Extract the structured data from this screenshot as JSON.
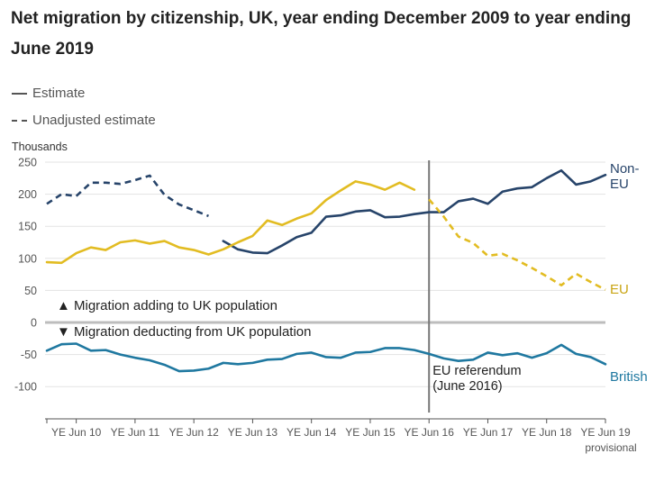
{
  "chart_data": {
    "type": "line",
    "title": "Net migration by citizenship, UK, year ending December 2009 to year ending June 2019",
    "ylabel": "Thousands",
    "ylim": [
      -140,
      250
    ],
    "yticks": [
      250,
      200,
      150,
      100,
      50,
      0,
      -50,
      -100
    ],
    "xtick_labels": [
      "YE Jun 10",
      "YE Jun 11",
      "YE Jun 12",
      "YE Jun 13",
      "YE Jun 14",
      "YE Jun 15",
      "YE Jun 16",
      "YE Jun 17",
      "YE Jun 18",
      "YE Jun 19"
    ],
    "xtick_note": "provisional",
    "x_start": "YE Dec 09",
    "x_step": "quarter",
    "grid": true,
    "legend": {
      "position": "top-left",
      "items": [
        {
          "label": "Estimate",
          "style": "solid"
        },
        {
          "label": "Unadjusted estimate",
          "style": "dashed"
        }
      ]
    },
    "series": [
      {
        "name": "Non-EU",
        "color": "#206095",
        "style_colour": "#27446a",
        "unadjusted": [
          [
            0,
            185
          ],
          [
            1,
            200
          ],
          [
            2,
            197
          ],
          [
            3,
            218
          ],
          [
            4,
            218
          ],
          [
            5,
            216
          ],
          [
            6,
            222
          ],
          [
            7,
            229
          ],
          [
            8,
            199
          ],
          [
            9,
            184
          ],
          [
            10,
            175
          ],
          [
            11,
            166
          ]
        ],
        "estimate": [
          [
            12,
            127
          ],
          [
            13,
            114
          ],
          [
            14,
            109
          ],
          [
            15,
            108
          ],
          [
            16,
            120
          ],
          [
            17,
            133
          ],
          [
            18,
            140
          ],
          [
            19,
            165
          ],
          [
            20,
            167
          ],
          [
            21,
            173
          ],
          [
            22,
            175
          ],
          [
            23,
            164
          ],
          [
            24,
            165
          ],
          [
            25,
            169
          ],
          [
            26,
            172
          ],
          [
            27,
            172
          ],
          [
            28,
            189
          ],
          [
            29,
            193
          ],
          [
            30,
            185
          ],
          [
            31,
            204
          ],
          [
            32,
            209
          ],
          [
            33,
            211
          ],
          [
            34,
            225
          ],
          [
            35,
            237
          ],
          [
            36,
            215
          ],
          [
            37,
            220
          ],
          [
            38,
            230
          ]
        ]
      },
      {
        "name": "EU",
        "color": "#e2bc22",
        "estimate": [
          [
            0,
            94
          ],
          [
            1,
            93
          ],
          [
            2,
            108
          ],
          [
            3,
            117
          ],
          [
            4,
            113
          ],
          [
            5,
            125
          ],
          [
            6,
            128
          ],
          [
            7,
            123
          ],
          [
            8,
            127
          ],
          [
            9,
            117
          ],
          [
            10,
            113
          ],
          [
            11,
            106
          ],
          [
            12,
            114
          ],
          [
            13,
            125
          ],
          [
            14,
            135
          ],
          [
            15,
            159
          ],
          [
            16,
            152
          ],
          [
            17,
            162
          ],
          [
            18,
            170
          ],
          [
            19,
            191
          ],
          [
            20,
            206
          ],
          [
            21,
            220
          ],
          [
            22,
            215
          ],
          [
            23,
            207
          ],
          [
            24,
            218
          ],
          [
            25,
            207
          ]
        ],
        "unadjusted": [
          [
            26,
            192
          ],
          [
            27,
            165
          ],
          [
            28,
            134
          ],
          [
            29,
            124
          ],
          [
            30,
            104
          ],
          [
            31,
            107
          ],
          [
            32,
            97
          ],
          [
            33,
            85
          ],
          [
            34,
            72
          ],
          [
            35,
            58
          ],
          [
            36,
            76
          ],
          [
            37,
            63
          ],
          [
            38,
            51
          ]
        ]
      },
      {
        "name": "British",
        "color": "#1f78a0",
        "estimate": [
          [
            0,
            -44
          ],
          [
            1,
            -34
          ],
          [
            2,
            -33
          ],
          [
            3,
            -44
          ],
          [
            4,
            -43
          ],
          [
            5,
            -50
          ],
          [
            6,
            -55
          ],
          [
            7,
            -59
          ],
          [
            8,
            -66
          ],
          [
            9,
            -76
          ],
          [
            10,
            -75
          ],
          [
            11,
            -72
          ],
          [
            12,
            -63
          ],
          [
            13,
            -65
          ],
          [
            14,
            -63
          ],
          [
            15,
            -58
          ],
          [
            16,
            -57
          ],
          [
            17,
            -49
          ],
          [
            18,
            -47
          ],
          [
            19,
            -54
          ],
          [
            20,
            -55
          ],
          [
            21,
            -47
          ],
          [
            22,
            -46
          ],
          [
            23,
            -40
          ],
          [
            24,
            -40
          ],
          [
            25,
            -43
          ],
          [
            26,
            -49
          ],
          [
            27,
            -56
          ],
          [
            28,
            -60
          ],
          [
            29,
            -58
          ],
          [
            30,
            -47
          ],
          [
            31,
            -51
          ],
          [
            32,
            -48
          ],
          [
            33,
            -55
          ],
          [
            34,
            -48
          ],
          [
            35,
            -35
          ],
          [
            36,
            -49
          ],
          [
            37,
            -54
          ],
          [
            38,
            -65
          ]
        ]
      }
    ],
    "series_labels": {
      "non_eu": [
        "Non-",
        "EU"
      ],
      "eu": "EU",
      "british": "British"
    },
    "annotations": {
      "adding": "▲ Migration adding to UK population",
      "deducting": "▼ Migration deducting from UK population",
      "referendum": [
        "EU referendum",
        "(June 2016)"
      ],
      "referendum_x": 26
    }
  }
}
